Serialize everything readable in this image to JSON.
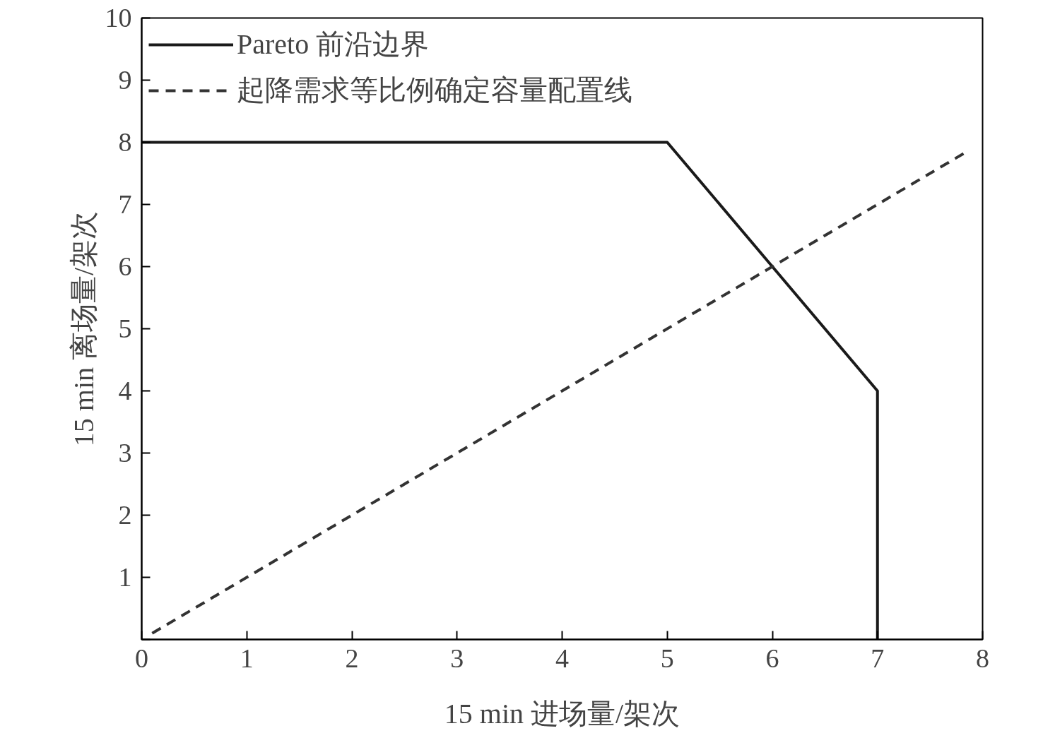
{
  "chart_data": {
    "type": "line",
    "xlabel": "15 min 进场量/架次",
    "ylabel": "15 min 离场量/架次",
    "xlim": [
      0,
      8
    ],
    "ylim": [
      0,
      10
    ],
    "xticks": [
      0,
      1,
      2,
      3,
      4,
      5,
      6,
      7,
      8
    ],
    "yticks": [
      {
        "value": 0,
        "label": null
      },
      1,
      2,
      3,
      4,
      5,
      6,
      7,
      8,
      9,
      10
    ],
    "grid": false,
    "legend": "top left",
    "marker": "none",
    "series": [
      {
        "name": "Pareto 前沿边界",
        "color": "#1a1a1a",
        "line_style": "solid",
        "x": [
          0,
          5,
          6,
          7,
          7
        ],
        "values": [
          8,
          8,
          6,
          4,
          0
        ]
      },
      {
        "name": "起降需求等比例确定容量配置线",
        "color": "#333333",
        "line_style": "dashed",
        "x": [
          0.1,
          7.85
        ],
        "values": [
          0.1,
          7.85
        ]
      }
    ]
  }
}
